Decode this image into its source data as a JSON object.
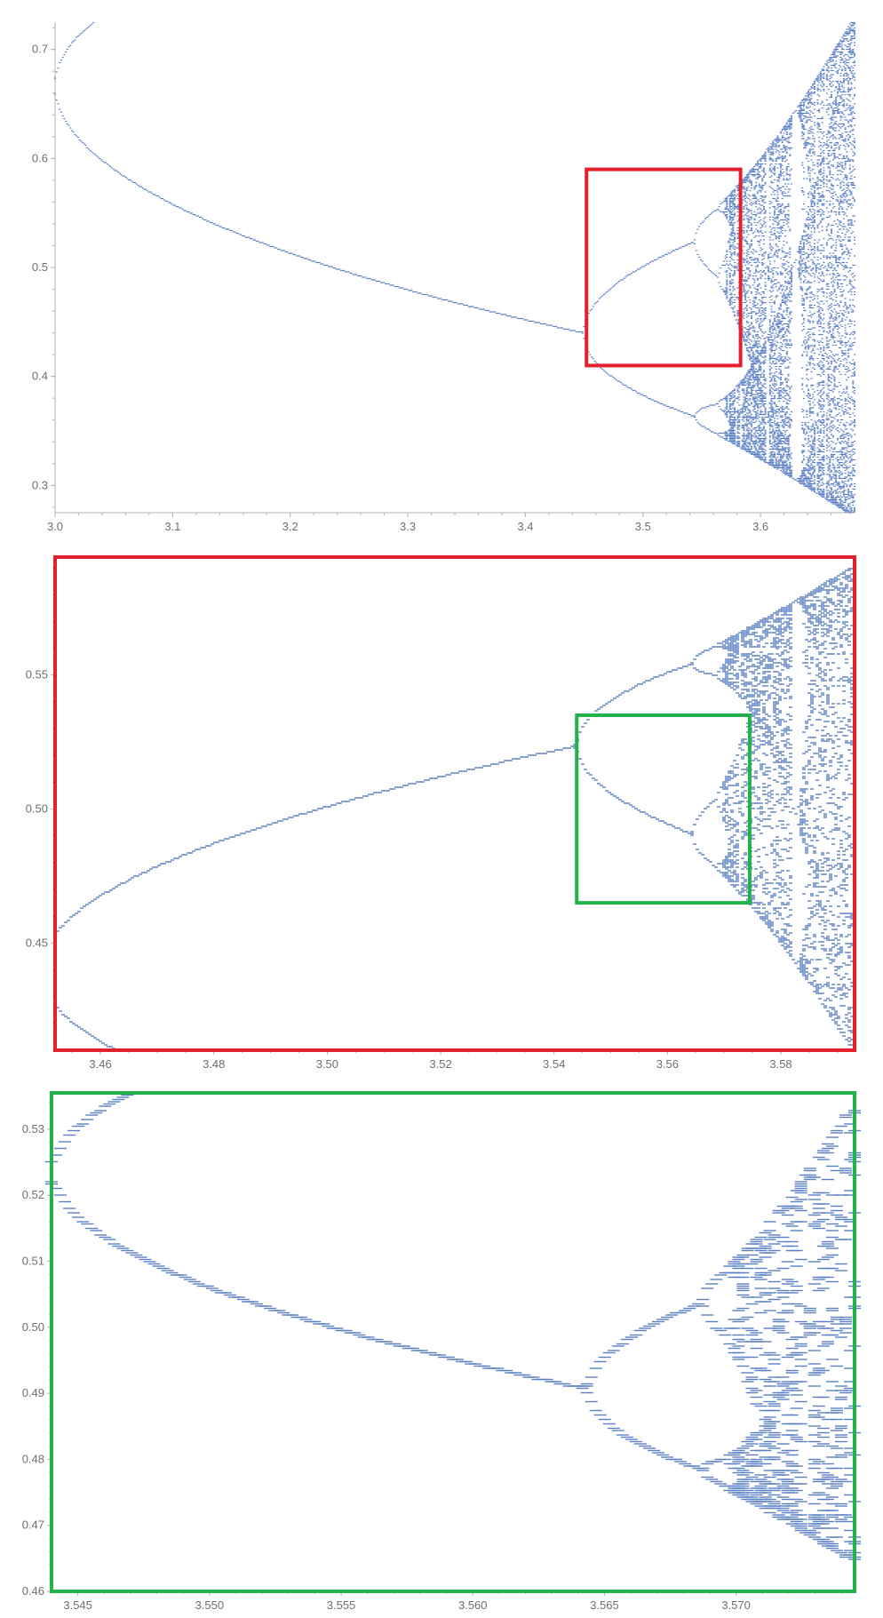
{
  "colors": {
    "data_points": "#5a7fc4",
    "axis": "#b3b3b3",
    "tick_text": "#6f6f6f",
    "zoom_box_1": "#e3202b",
    "zoom_box_2": "#22b24c"
  },
  "chart_data": [
    {
      "type": "scatter",
      "title": "",
      "xlabel": "",
      "ylabel": "",
      "xlim": [
        3.0,
        3.68
      ],
      "ylim": [
        0.275,
        0.725
      ],
      "x_ticks": [
        "3.0",
        "3.1",
        "3.2",
        "3.3",
        "3.4",
        "3.5",
        "3.6"
      ],
      "y_ticks": [
        "0.3",
        "0.4",
        "0.5",
        "0.6",
        "0.7"
      ],
      "grid": false,
      "legend": "none",
      "series": [
        {
          "description_of_data": "logistic map attractor x vs r",
          "period_doubling_r": [
            3.0,
            3.449,
            3.544,
            3.5644,
            3.5688
          ],
          "chaos_onset_r": 3.5699
        }
      ],
      "annotations": [
        {
          "type": "zoom-box",
          "color": "red",
          "x_range": [
            3.452,
            3.583
          ],
          "y_range": [
            0.41,
            0.59
          ]
        }
      ]
    },
    {
      "type": "scatter",
      "title": "",
      "xlabel": "",
      "ylabel": "",
      "xlim": [
        3.452,
        3.593
      ],
      "ylim": [
        0.41,
        0.594
      ],
      "x_ticks": [
        "3.46",
        "3.48",
        "3.50",
        "3.52",
        "3.54",
        "3.56",
        "3.58"
      ],
      "y_ticks": [
        "0.45",
        "0.50",
        "0.55"
      ],
      "grid": false,
      "legend": "none",
      "annotations": [
        {
          "type": "zoom-box",
          "color": "green",
          "x_range": [
            3.544,
            3.5745
          ],
          "y_range": [
            0.465,
            0.535
          ]
        }
      ]
    },
    {
      "type": "scatter",
      "title": "",
      "xlabel": "",
      "ylabel": "",
      "xlim": [
        3.544,
        3.5745
      ],
      "ylim": [
        0.46,
        0.5355
      ],
      "x_ticks": [
        "3.545",
        "3.550",
        "3.555",
        "3.560",
        "3.565",
        "3.570"
      ],
      "y_ticks": [
        "0.46",
        "0.47",
        "0.48",
        "0.49",
        "0.50",
        "0.51",
        "0.52",
        "0.53"
      ],
      "grid": false,
      "legend": "none"
    }
  ]
}
